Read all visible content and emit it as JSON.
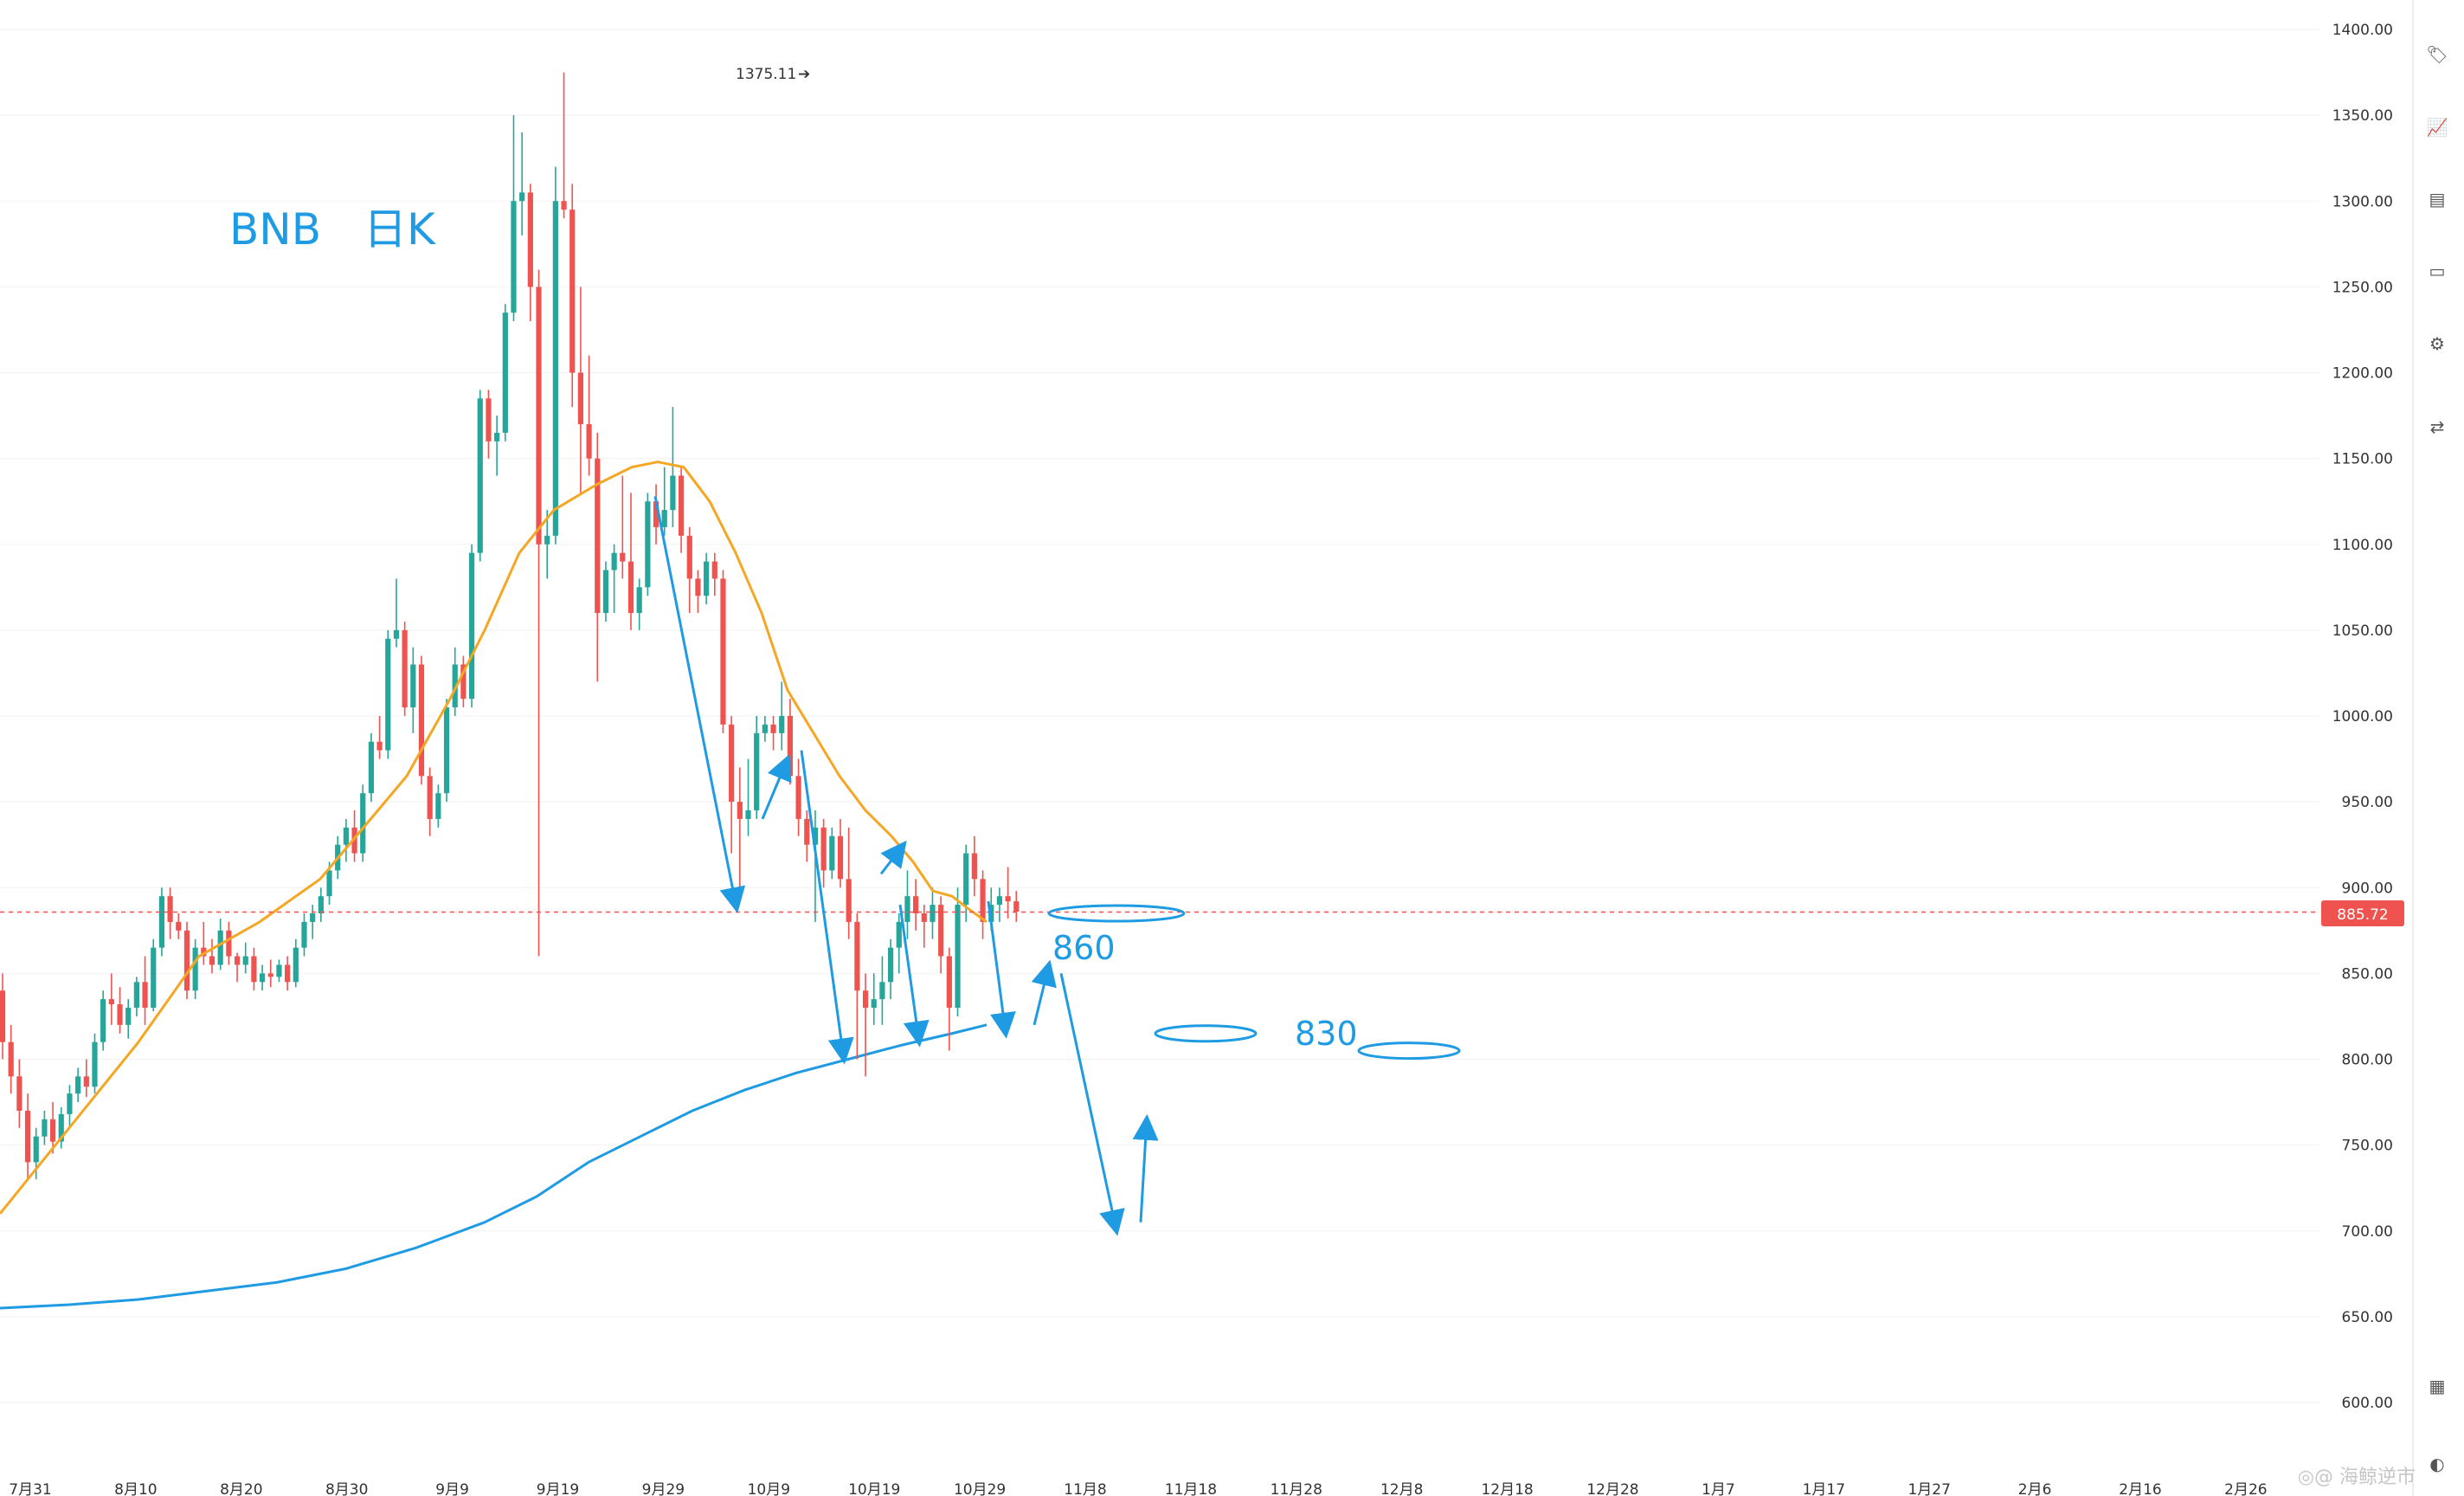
{
  "chart_data": {
    "type": "candlestick",
    "title": "BNB",
    "subtitle": "日K",
    "ylim": [
      580,
      1410
    ],
    "y_ticks": [
      "1400.00",
      "1350.00",
      "1300.00",
      "1250.00",
      "1200.00",
      "1150.00",
      "1100.00",
      "1050.00",
      "1000.00",
      "950.00",
      "900.00",
      "850.00",
      "800.00",
      "750.00",
      "700.00",
      "650.00",
      "600.00"
    ],
    "x_ticks": [
      "7月31",
      "8月10",
      "8月20",
      "8月30",
      "9月9",
      "9月19",
      "9月29",
      "10月9",
      "10月19",
      "10月29",
      "11月8",
      "11月18",
      "11月28",
      "12月8",
      "12月18",
      "12月28",
      "1月7",
      "1月17",
      "1月27",
      "2月6",
      "2月16",
      "2月26"
    ],
    "current_price": "885.72",
    "high_label": "1375.11",
    "annotations": [
      "860",
      "830"
    ],
    "up_color": "#26a69a",
    "down_color": "#ef5350",
    "ma_short_color": "#f5a623",
    "ma_long_color": "#1e9be3",
    "candles": [
      [
        840,
        850,
        800,
        810
      ],
      [
        810,
        820,
        780,
        790
      ],
      [
        790,
        800,
        760,
        770
      ],
      [
        770,
        780,
        730,
        740
      ],
      [
        740,
        760,
        730,
        755
      ],
      [
        755,
        770,
        750,
        765
      ],
      [
        765,
        775,
        745,
        752
      ],
      [
        752,
        772,
        748,
        768
      ],
      [
        768,
        785,
        760,
        780
      ],
      [
        780,
        795,
        775,
        790
      ],
      [
        790,
        800,
        778,
        784
      ],
      [
        784,
        815,
        780,
        810
      ],
      [
        810,
        840,
        805,
        835
      ],
      [
        835,
        850,
        820,
        832
      ],
      [
        832,
        842,
        815,
        820
      ],
      [
        820,
        835,
        812,
        830
      ],
      [
        830,
        848,
        825,
        845
      ],
      [
        845,
        860,
        820,
        830
      ],
      [
        830,
        870,
        828,
        865
      ],
      [
        865,
        900,
        860,
        895
      ],
      [
        895,
        900,
        870,
        880
      ],
      [
        880,
        885,
        870,
        875
      ],
      [
        875,
        880,
        835,
        840
      ],
      [
        840,
        870,
        835,
        865
      ],
      [
        865,
        880,
        855,
        860
      ],
      [
        860,
        870,
        850,
        855
      ],
      [
        855,
        882,
        852,
        875
      ],
      [
        875,
        880,
        855,
        860
      ],
      [
        860,
        862,
        845,
        855
      ],
      [
        855,
        868,
        850,
        860
      ],
      [
        860,
        865,
        840,
        845
      ],
      [
        845,
        855,
        840,
        850
      ],
      [
        850,
        858,
        842,
        848
      ],
      [
        848,
        858,
        845,
        855
      ],
      [
        855,
        860,
        840,
        845
      ],
      [
        845,
        870,
        842,
        865
      ],
      [
        865,
        885,
        860,
        880
      ],
      [
        880,
        890,
        870,
        885
      ],
      [
        885,
        900,
        880,
        895
      ],
      [
        895,
        915,
        890,
        910
      ],
      [
        910,
        930,
        905,
        925
      ],
      [
        925,
        940,
        915,
        935
      ],
      [
        935,
        945,
        915,
        920
      ],
      [
        920,
        960,
        915,
        955
      ],
      [
        955,
        990,
        950,
        985
      ],
      [
        985,
        1000,
        975,
        980
      ],
      [
        980,
        1050,
        975,
        1045
      ],
      [
        1045,
        1080,
        1040,
        1050
      ],
      [
        1050,
        1055,
        1000,
        1005
      ],
      [
        1005,
        1040,
        990,
        1030
      ],
      [
        1030,
        1035,
        960,
        965
      ],
      [
        965,
        970,
        930,
        940
      ],
      [
        940,
        960,
        935,
        955
      ],
      [
        955,
        1010,
        950,
        1005
      ],
      [
        1005,
        1040,
        1000,
        1030
      ],
      [
        1030,
        1035,
        1005,
        1010
      ],
      [
        1010,
        1100,
        1005,
        1095
      ],
      [
        1095,
        1190,
        1090,
        1185
      ],
      [
        1185,
        1190,
        1150,
        1160
      ],
      [
        1160,
        1175,
        1140,
        1165
      ],
      [
        1165,
        1240,
        1160,
        1235
      ],
      [
        1235,
        1350,
        1230,
        1300
      ],
      [
        1300,
        1340,
        1280,
        1305
      ],
      [
        1305,
        1310,
        1230,
        1250
      ],
      [
        1250,
        1260,
        860,
        1100
      ],
      [
        1100,
        1120,
        1080,
        1105
      ],
      [
        1105,
        1320,
        1100,
        1300
      ],
      [
        1300,
        1375,
        1290,
        1295
      ],
      [
        1295,
        1310,
        1180,
        1200
      ],
      [
        1200,
        1250,
        1130,
        1170
      ],
      [
        1170,
        1210,
        1140,
        1150
      ],
      [
        1150,
        1165,
        1020,
        1060
      ],
      [
        1060,
        1090,
        1055,
        1085
      ],
      [
        1085,
        1100,
        1060,
        1095
      ],
      [
        1095,
        1140,
        1080,
        1090
      ],
      [
        1090,
        1130,
        1050,
        1060
      ],
      [
        1060,
        1080,
        1050,
        1075
      ],
      [
        1075,
        1130,
        1070,
        1125
      ],
      [
        1125,
        1135,
        1100,
        1110
      ],
      [
        1110,
        1145,
        1105,
        1120
      ],
      [
        1120,
        1180,
        1110,
        1140
      ],
      [
        1140,
        1145,
        1095,
        1105
      ],
      [
        1105,
        1110,
        1060,
        1080
      ],
      [
        1080,
        1085,
        1060,
        1070
      ],
      [
        1070,
        1095,
        1065,
        1090
      ],
      [
        1090,
        1095,
        1070,
        1080
      ],
      [
        1080,
        1085,
        990,
        995
      ],
      [
        995,
        1000,
        920,
        950
      ],
      [
        950,
        970,
        900,
        940
      ],
      [
        940,
        975,
        930,
        945
      ],
      [
        945,
        1000,
        940,
        990
      ],
      [
        990,
        1000,
        985,
        995
      ],
      [
        995,
        1000,
        980,
        990
      ],
      [
        990,
        1020,
        980,
        1000
      ],
      [
        1000,
        1010,
        960,
        965
      ],
      [
        965,
        975,
        930,
        940
      ],
      [
        940,
        945,
        915,
        925
      ],
      [
        925,
        945,
        880,
        935
      ],
      [
        935,
        940,
        900,
        910
      ],
      [
        910,
        935,
        905,
        930
      ],
      [
        930,
        940,
        900,
        905
      ],
      [
        905,
        935,
        870,
        880
      ],
      [
        880,
        885,
        800,
        840
      ],
      [
        840,
        850,
        790,
        830
      ],
      [
        830,
        850,
        820,
        835
      ],
      [
        835,
        860,
        820,
        845
      ],
      [
        845,
        870,
        835,
        865
      ],
      [
        865,
        885,
        850,
        880
      ],
      [
        880,
        910,
        870,
        895
      ],
      [
        895,
        905,
        875,
        885
      ],
      [
        885,
        890,
        865,
        880
      ],
      [
        880,
        900,
        870,
        890
      ],
      [
        890,
        895,
        850,
        860
      ],
      [
        860,
        865,
        805,
        830
      ],
      [
        830,
        900,
        825,
        890
      ],
      [
        890,
        925,
        880,
        920
      ],
      [
        920,
        930,
        895,
        905
      ],
      [
        905,
        910,
        870,
        880
      ],
      [
        880,
        900,
        875,
        890
      ],
      [
        890,
        900,
        880,
        895
      ],
      [
        895,
        912,
        882,
        892
      ],
      [
        892,
        898,
        880,
        886
      ]
    ],
    "ma_short": [
      [
        0,
        710
      ],
      [
        80,
        760
      ],
      [
        160,
        810
      ],
      [
        230,
        860
      ],
      [
        300,
        880
      ],
      [
        370,
        905
      ],
      [
        420,
        935
      ],
      [
        470,
        965
      ],
      [
        520,
        1010
      ],
      [
        560,
        1050
      ],
      [
        600,
        1095
      ],
      [
        640,
        1120
      ],
      [
        690,
        1135
      ],
      [
        730,
        1145
      ],
      [
        760,
        1148
      ],
      [
        790,
        1145
      ],
      [
        820,
        1125
      ],
      [
        850,
        1095
      ],
      [
        880,
        1060
      ],
      [
        910,
        1015
      ],
      [
        940,
        990
      ],
      [
        970,
        965
      ],
      [
        1000,
        945
      ],
      [
        1030,
        930
      ],
      [
        1055,
        915
      ],
      [
        1078,
        898
      ],
      [
        1100,
        895
      ],
      [
        1118,
        888
      ],
      [
        1140,
        880
      ]
    ],
    "ma_long": [
      [
        0,
        655
      ],
      [
        80,
        657
      ],
      [
        160,
        660
      ],
      [
        240,
        665
      ],
      [
        320,
        670
      ],
      [
        400,
        678
      ],
      [
        480,
        690
      ],
      [
        560,
        705
      ],
      [
        620,
        720
      ],
      [
        680,
        740
      ],
      [
        740,
        755
      ],
      [
        800,
        770
      ],
      [
        860,
        782
      ],
      [
        920,
        792
      ],
      [
        980,
        800
      ],
      [
        1040,
        808
      ],
      [
        1100,
        815
      ],
      [
        1140,
        820
      ]
    ],
    "arrows": [
      [
        [
          757,
          1128
        ],
        [
          851,
          888
        ]
      ],
      [
        [
          881,
          940
        ],
        [
          910,
          975
        ]
      ],
      [
        [
          926,
          980
        ],
        [
          975,
          800
        ]
      ],
      [
        [
          1018,
          908
        ],
        [
          1044,
          925
        ]
      ],
      [
        [
          1040,
          890
        ],
        [
          1062,
          810
        ]
      ],
      [
        [
          1142,
          892
        ],
        [
          1162,
          815
        ]
      ],
      [
        [
          1195,
          820
        ],
        [
          1212,
          855
        ]
      ],
      [
        [
          1226,
          850
        ],
        [
          1290,
          700
        ]
      ],
      [
        [
          1318,
          705
        ],
        [
          1325,
          765
        ]
      ]
    ],
    "ellipses": [
      [
        872,
        885
      ],
      [
        975,
        815
      ],
      [
        1210,
        805
      ]
    ]
  }
}
